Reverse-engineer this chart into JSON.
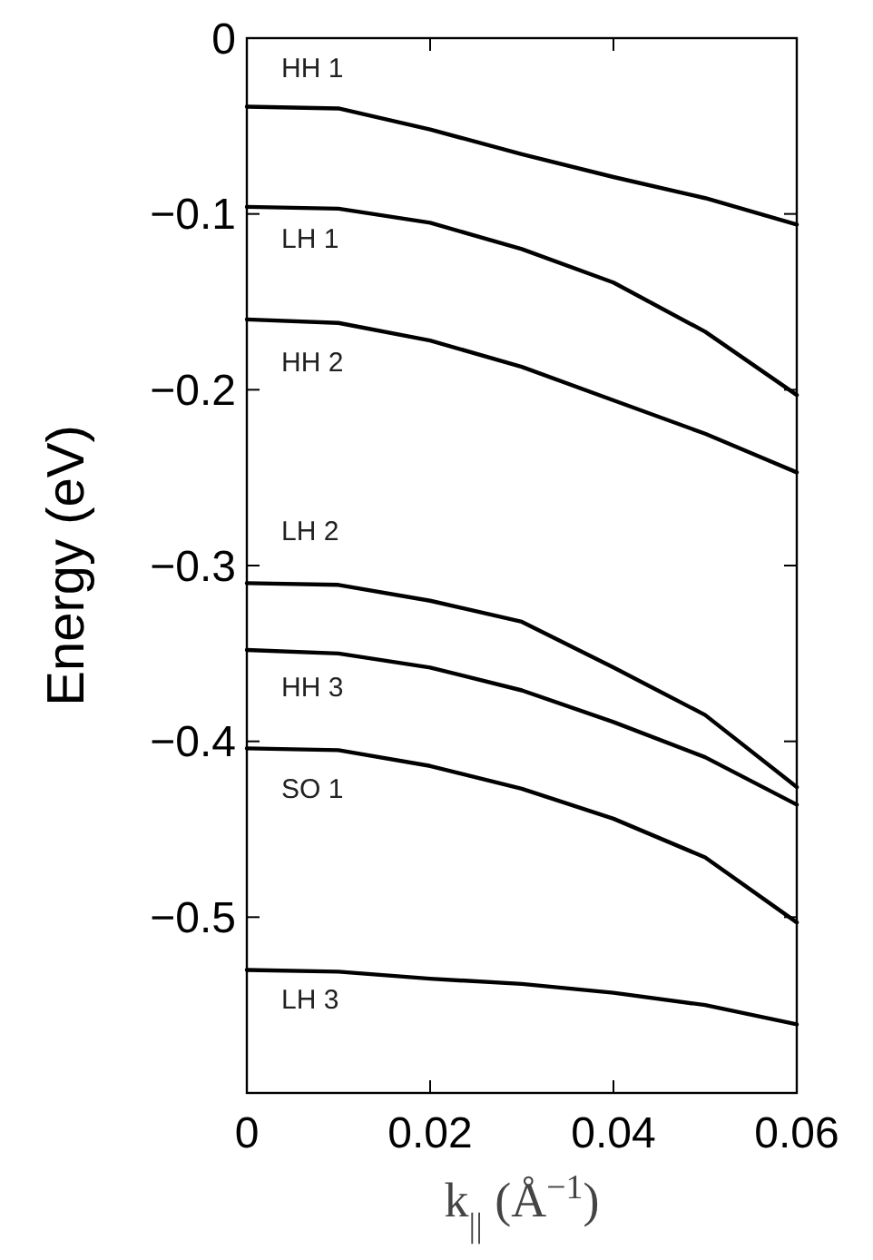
{
  "chart_data": {
    "type": "line",
    "xlabel": "k$_{||}$ (Å$^{−1}$)",
    "ylabel": "Energy (eV)",
    "x": [
      0,
      0.01,
      0.02,
      0.03,
      0.04,
      0.05,
      0.06
    ],
    "series": [
      {
        "color": "#000000",
        "values": [
          -0.039,
          -0.04,
          -0.052,
          -0.066,
          -0.079,
          -0.091,
          -0.106
        ]
      },
      {
        "color": "#000000",
        "values": [
          -0.096,
          -0.097,
          -0.105,
          -0.12,
          -0.139,
          -0.167,
          -0.203
        ]
      },
      {
        "color": "#000000",
        "values": [
          -0.16,
          -0.162,
          -0.172,
          -0.187,
          -0.206,
          -0.225,
          -0.247
        ]
      },
      {
        "color": "#000000",
        "values": [
          -0.31,
          -0.311,
          -0.32,
          -0.332,
          -0.358,
          -0.385,
          -0.426
        ]
      },
      {
        "color": "#000000",
        "values": [
          -0.348,
          -0.35,
          -0.358,
          -0.371,
          -0.389,
          -0.409,
          -0.436
        ]
      },
      {
        "color": "#000000",
        "values": [
          -0.404,
          -0.405,
          -0.414,
          -0.427,
          -0.444,
          -0.466,
          -0.503
        ]
      },
      {
        "color": "#000000",
        "values": [
          -0.53,
          -0.531,
          -0.535,
          -0.538,
          -0.543,
          -0.55,
          -0.561
        ]
      }
    ],
    "annotations": [
      "HH 1",
      "LH 1",
      "HH 2",
      "LH 2",
      "HH 3",
      "SO 1",
      "LH 3"
    ],
    "xlim": [
      0,
      0.06
    ],
    "ylim": [
      -0.6,
      0
    ],
    "xticks": [
      0,
      0.02,
      0.04,
      0.06
    ],
    "yticks": [
      0,
      -0.1,
      -0.2,
      -0.3,
      -0.4,
      -0.5
    ],
    "grid": false,
    "marker": "none",
    "line_style": "solid"
  }
}
